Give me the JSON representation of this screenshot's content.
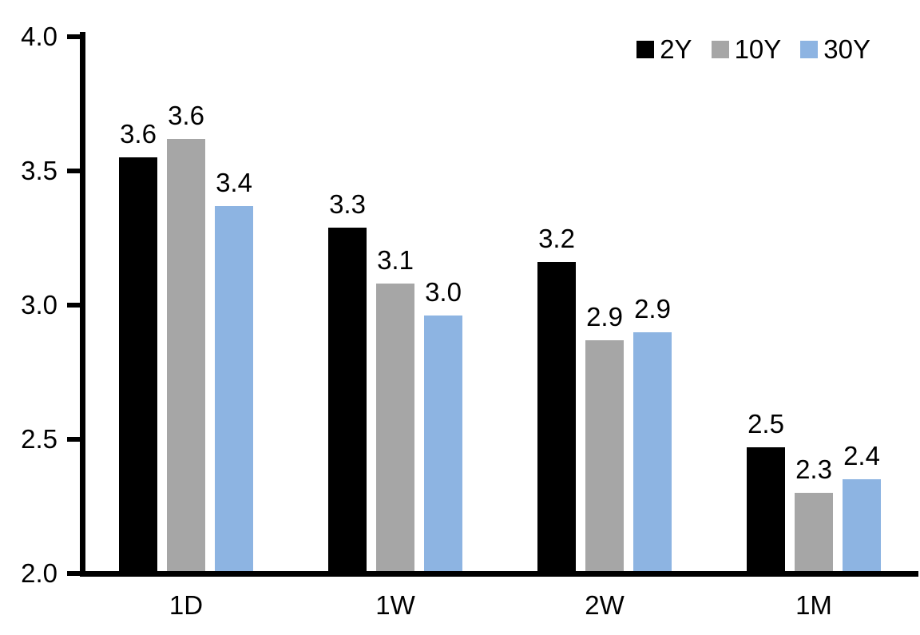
{
  "chart_data": {
    "type": "bar",
    "title": "",
    "categories": [
      "1D",
      "1W",
      "2W",
      "1M"
    ],
    "series": [
      {
        "name": "2Y",
        "color": "#000000",
        "values": [
          3.55,
          3.29,
          3.16,
          2.47
        ],
        "labels": [
          "3.6",
          "3.3",
          "3.2",
          "2.5"
        ]
      },
      {
        "name": "10Y",
        "color": "#A6A6A6",
        "values": [
          3.62,
          3.08,
          2.87,
          2.3
        ],
        "labels": [
          "3.6",
          "3.1",
          "2.9",
          "2.3"
        ]
      },
      {
        "name": "30Y",
        "color": "#8DB4E2",
        "values": [
          3.37,
          2.96,
          2.9,
          2.35
        ],
        "labels": [
          "3.4",
          "3.0",
          "2.9",
          "2.4"
        ]
      }
    ],
    "ylim": [
      2.0,
      4.0
    ],
    "yticks": [
      {
        "value": 4.0,
        "label": "4.0"
      },
      {
        "value": 3.5,
        "label": "3.5"
      },
      {
        "value": 3.0,
        "label": "3.0"
      },
      {
        "value": 2.5,
        "label": "2.5"
      },
      {
        "value": 2.0,
        "label": "2.0"
      }
    ],
    "xlabel": "",
    "ylabel": "",
    "grid": false,
    "legend_position": "top-right",
    "axis_color": "#000000",
    "text_color": "#000000",
    "background_color": "#FFFFFF"
  }
}
